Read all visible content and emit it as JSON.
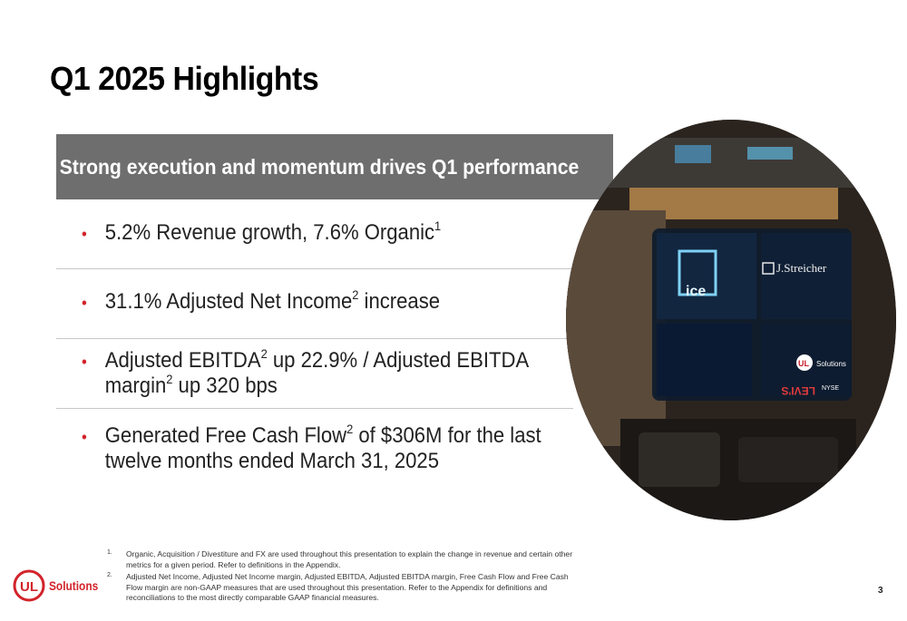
{
  "slide": {
    "title": "Q1 2025 Highlights",
    "banner": "Strong execution and momentum drives Q1 performance",
    "page_number": "3"
  },
  "bullets": [
    {
      "parts": [
        "5.2% Revenue growth, 7.6% Organic",
        "1"
      ]
    },
    {
      "parts": [
        "31.1% Adjusted Net Income",
        "2",
        " increase"
      ]
    },
    {
      "parts": [
        "Adjusted EBITDA",
        "2",
        " up 22.9% / Adjusted EBITDA margin",
        "2",
        " up 320 bps"
      ]
    },
    {
      "parts": [
        "Generated Free Cash Flow",
        "2",
        " of $306M for the last twelve months ended March 31, 2025"
      ]
    }
  ],
  "footnotes": [
    {
      "num": "1.",
      "text": "Organic, Acquisition / Divestiture and FX are used throughout this presentation to explain the change in revenue and certain other metrics for a given period. Refer to definitions in the Appendix."
    },
    {
      "num": "2.",
      "text": "Adjusted Net Income, Adjusted Net Income margin, Adjusted EBITDA, Adjusted EBITDA margin, Free Cash Flow and Free Cash Flow margin are non-GAAP measures that are used throughout this presentation. Refer to the Appendix for definitions and reconciliations to the most directly comparable GAAP financial measures."
    }
  ],
  "logo": {
    "mark": "UL",
    "text": "Solutions"
  },
  "photo": {
    "signs": {
      "ice": "ice",
      "streicher": "J.Streicher",
      "levis": "LEVI'S",
      "ul": "UL",
      "ul_text": "Solutions",
      "nyse": "NYSE"
    }
  },
  "colors": {
    "accent": "#d2232a",
    "banner": "#6e6e6e",
    "divider": "#c7c7c7"
  }
}
